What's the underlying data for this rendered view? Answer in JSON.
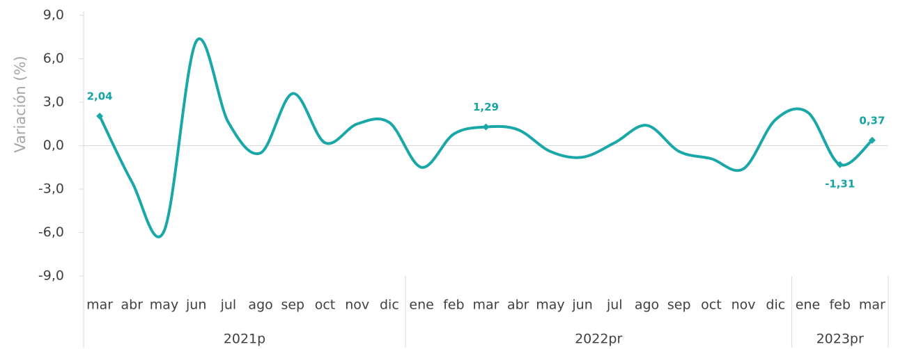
{
  "chart_data": {
    "type": "line",
    "y_label": "Variación (%)",
    "categories": [
      "mar",
      "abr",
      "may",
      "jun",
      "jul",
      "ago",
      "sep",
      "oct",
      "nov",
      "dic",
      "ene",
      "feb",
      "mar",
      "abr",
      "may",
      "jun",
      "jul",
      "ago",
      "sep",
      "oct",
      "nov",
      "dic",
      "ene",
      "feb",
      "mar"
    ],
    "groups": [
      {
        "label": "2021p",
        "size": 10
      },
      {
        "label": "2022pr",
        "size": 12
      },
      {
        "label": "2023pr",
        "size": 3
      }
    ],
    "series": [
      {
        "name": "Variación",
        "color": "#1aa7a8",
        "values": [
          2.04,
          -2.5,
          -5.9,
          7.2,
          1.6,
          -0.5,
          3.6,
          0.2,
          1.5,
          1.6,
          -1.5,
          0.8,
          1.29,
          1.1,
          -0.4,
          -0.8,
          0.2,
          1.4,
          -0.4,
          -0.9,
          -1.6,
          1.8,
          2.3,
          -1.31,
          0.37
        ],
        "value_labels": [
          "2,04",
          null,
          null,
          null,
          null,
          null,
          null,
          null,
          null,
          null,
          null,
          null,
          "1,29",
          null,
          null,
          null,
          null,
          null,
          null,
          null,
          null,
          null,
          null,
          "-1,31",
          "0,37"
        ]
      }
    ],
    "ylim": [
      -9,
      9
    ],
    "yticks": [
      {
        "value": -9,
        "label": "-9,0"
      },
      {
        "value": -6,
        "label": "-6,0"
      },
      {
        "value": -3,
        "label": "-3,0"
      },
      {
        "value": 0,
        "label": "0,0"
      },
      {
        "value": 3,
        "label": "3,0"
      },
      {
        "value": 6,
        "label": "6,0"
      },
      {
        "value": 9,
        "label": "9,0"
      }
    ]
  }
}
